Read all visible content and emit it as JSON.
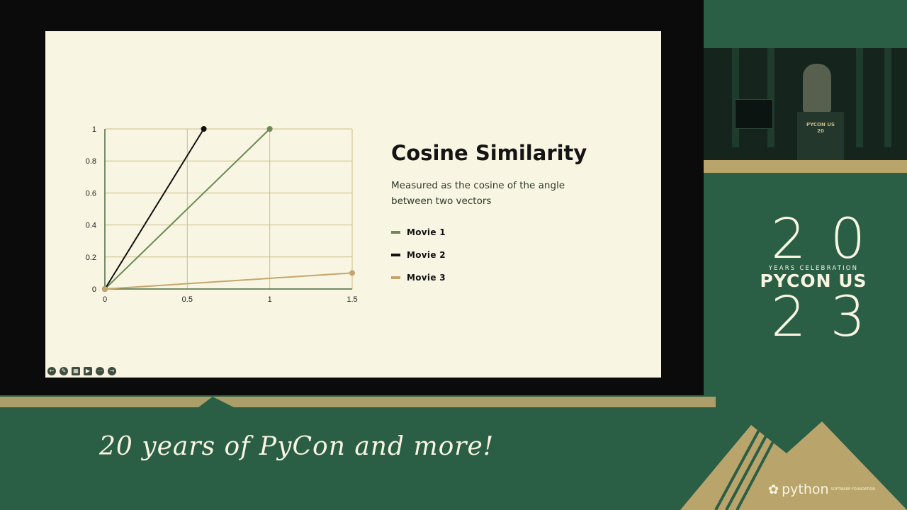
{
  "slide": {
    "title": "Cosine Similarity",
    "description": "Measured as the cosine of the angle between two vectors"
  },
  "chart_data": {
    "type": "line",
    "xlim": [
      0,
      1.5
    ],
    "ylim": [
      0,
      1
    ],
    "xticks": [
      "0",
      "0.5",
      "1",
      "1.5"
    ],
    "yticks": [
      "0",
      "0.2",
      "0.4",
      "0.6",
      "0.8",
      "1"
    ],
    "grid": true,
    "legend_position": "right",
    "series": [
      {
        "name": "Movie 1",
        "color": "#6b8a55",
        "x": [
          0,
          1
        ],
        "y": [
          0,
          1
        ]
      },
      {
        "name": "Movie 2",
        "color": "#111111",
        "x": [
          0,
          0.6
        ],
        "y": [
          0,
          1
        ]
      },
      {
        "name": "Movie 3",
        "color": "#c3a66e",
        "x": [
          0,
          1.5
        ],
        "y": [
          0,
          0.1
        ]
      }
    ]
  },
  "sidebar_logo": {
    "top_number": "20",
    "subtitle": "YEARS CELEBRATION",
    "name": "PYCON US",
    "bottom_number": "23"
  },
  "camera": {
    "podium_text": "PYCON US",
    "podium_number": "20"
  },
  "footer": {
    "slogan": "20 years of PyCon and more!",
    "psf_logo": "python",
    "psf_small": "SOFTWARE FOUNDATION"
  },
  "colors": {
    "brand_green": "#2a5e45",
    "slide_bg": "#f8f5e2",
    "gold": "#b9a56b"
  }
}
